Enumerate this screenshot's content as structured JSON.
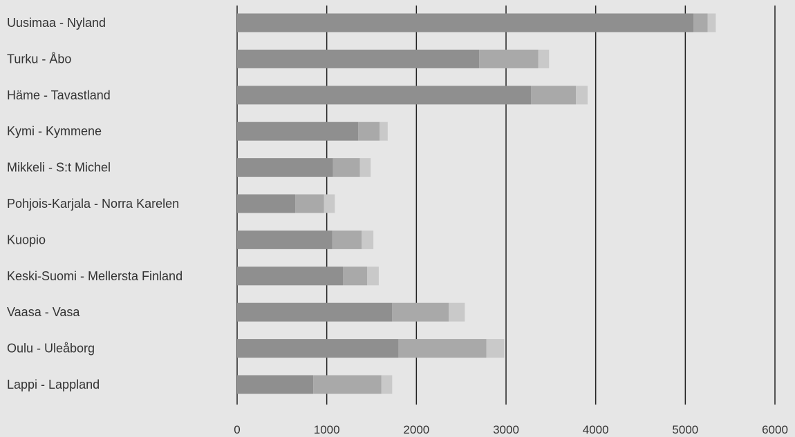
{
  "chart_data": {
    "type": "bar",
    "orientation": "horizontal",
    "stacked": true,
    "title": "",
    "xlabel": "",
    "ylabel": "",
    "categories": [
      "Uusimaa - Nyland",
      "Turku - Åbo",
      "Häme - Tavastland",
      "Kymi - Kymmene",
      "Mikkeli - S:t Michel",
      "Pohjois-Karjala - Norra Karelen",
      "Kuopio",
      "Keski-Suomi - Mellersta Finland",
      "Vaasa - Vasa",
      "Oulu - Uleåborg",
      "Lappi - Lappland"
    ],
    "series": [
      {
        "values": [
          5090,
          2700,
          3280,
          1350,
          1070,
          650,
          1060,
          1180,
          1730,
          1800,
          850
        ],
        "color": "#8f8f8f"
      },
      {
        "values": [
          160,
          660,
          500,
          240,
          300,
          320,
          330,
          270,
          630,
          980,
          760
        ],
        "color": "#a9a9a9"
      },
      {
        "values": [
          90,
          120,
          130,
          90,
          120,
          120,
          130,
          130,
          180,
          200,
          120
        ],
        "color": "#c9c9c9"
      }
    ],
    "xlim": [
      0,
      6000
    ],
    "xticks": [
      "0",
      "1000",
      "2000",
      "3000",
      "4000",
      "5000",
      "6000"
    ],
    "grid": true,
    "legend": "none"
  }
}
